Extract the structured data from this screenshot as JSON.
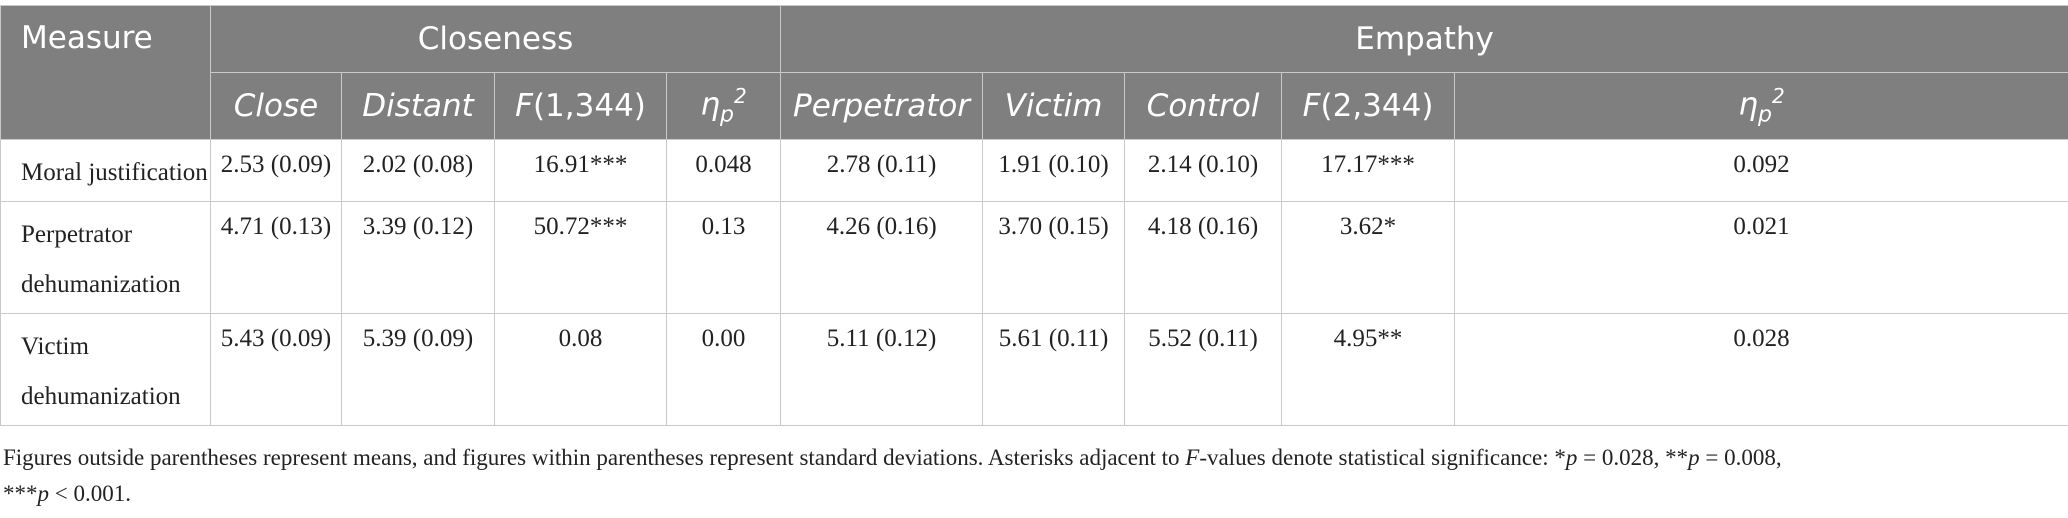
{
  "table": {
    "measure_header": "Measure",
    "groups": [
      {
        "label": "Closeness"
      },
      {
        "label": "Empathy"
      }
    ],
    "closeness_columns": {
      "close": "Close",
      "distant": "Distant",
      "f_italic": "F",
      "f_rest": "(1,344)",
      "eta": "η",
      "eta_sub": "p",
      "eta_sup": "2"
    },
    "empathy_columns": {
      "perpetrator": "Perpetrator",
      "victim": "Victim",
      "control": "Control",
      "f_italic": "F",
      "f_rest": "(2,344)",
      "eta": "η",
      "eta_sub": "p",
      "eta_sup": "2"
    },
    "rows": [
      {
        "label": "Moral justification",
        "close": "2.53 (0.09)",
        "distant": "2.02 (0.08)",
        "f_closeness": "16.91***",
        "eta_closeness": "0.048",
        "perpetrator": "2.78 (0.11)",
        "victim": "1.91 (0.10)",
        "control": "2.14 (0.10)",
        "f_empathy": "17.17***",
        "eta_empathy": "0.092"
      },
      {
        "label_line1": "Perpetrator",
        "label_line2": "dehumanization",
        "close": "4.71 (0.13)",
        "distant": "3.39 (0.12)",
        "f_closeness": "50.72***",
        "eta_closeness": "0.13",
        "perpetrator": "4.26 (0.16)",
        "victim": "3.70 (0.15)",
        "control": "4.18 (0.16)",
        "f_empathy": "3.62*",
        "eta_empathy": "0.021"
      },
      {
        "label_line1": "Victim",
        "label_line2": "dehumanization",
        "close": "5.43 (0.09)",
        "distant": "5.39 (0.09)",
        "f_closeness": "0.08",
        "eta_closeness": "0.00",
        "perpetrator": "5.11 (0.12)",
        "victim": "5.61 (0.11)",
        "control": "5.52 (0.11)",
        "f_empathy": "4.95**",
        "eta_empathy": "0.028"
      }
    ]
  },
  "note": {
    "part1": "Figures outside parentheses represent means, and figures within parentheses represent standard deviations. Asterisks adjacent to ",
    "f": "F",
    "part2": "-values denote statistical significance: *",
    "p1": "p",
    "part3": " = 0.028, **",
    "p2": "p",
    "part4": " = 0.008,",
    "part5": "***",
    "p3": "p",
    "part6": " < 0.001."
  }
}
